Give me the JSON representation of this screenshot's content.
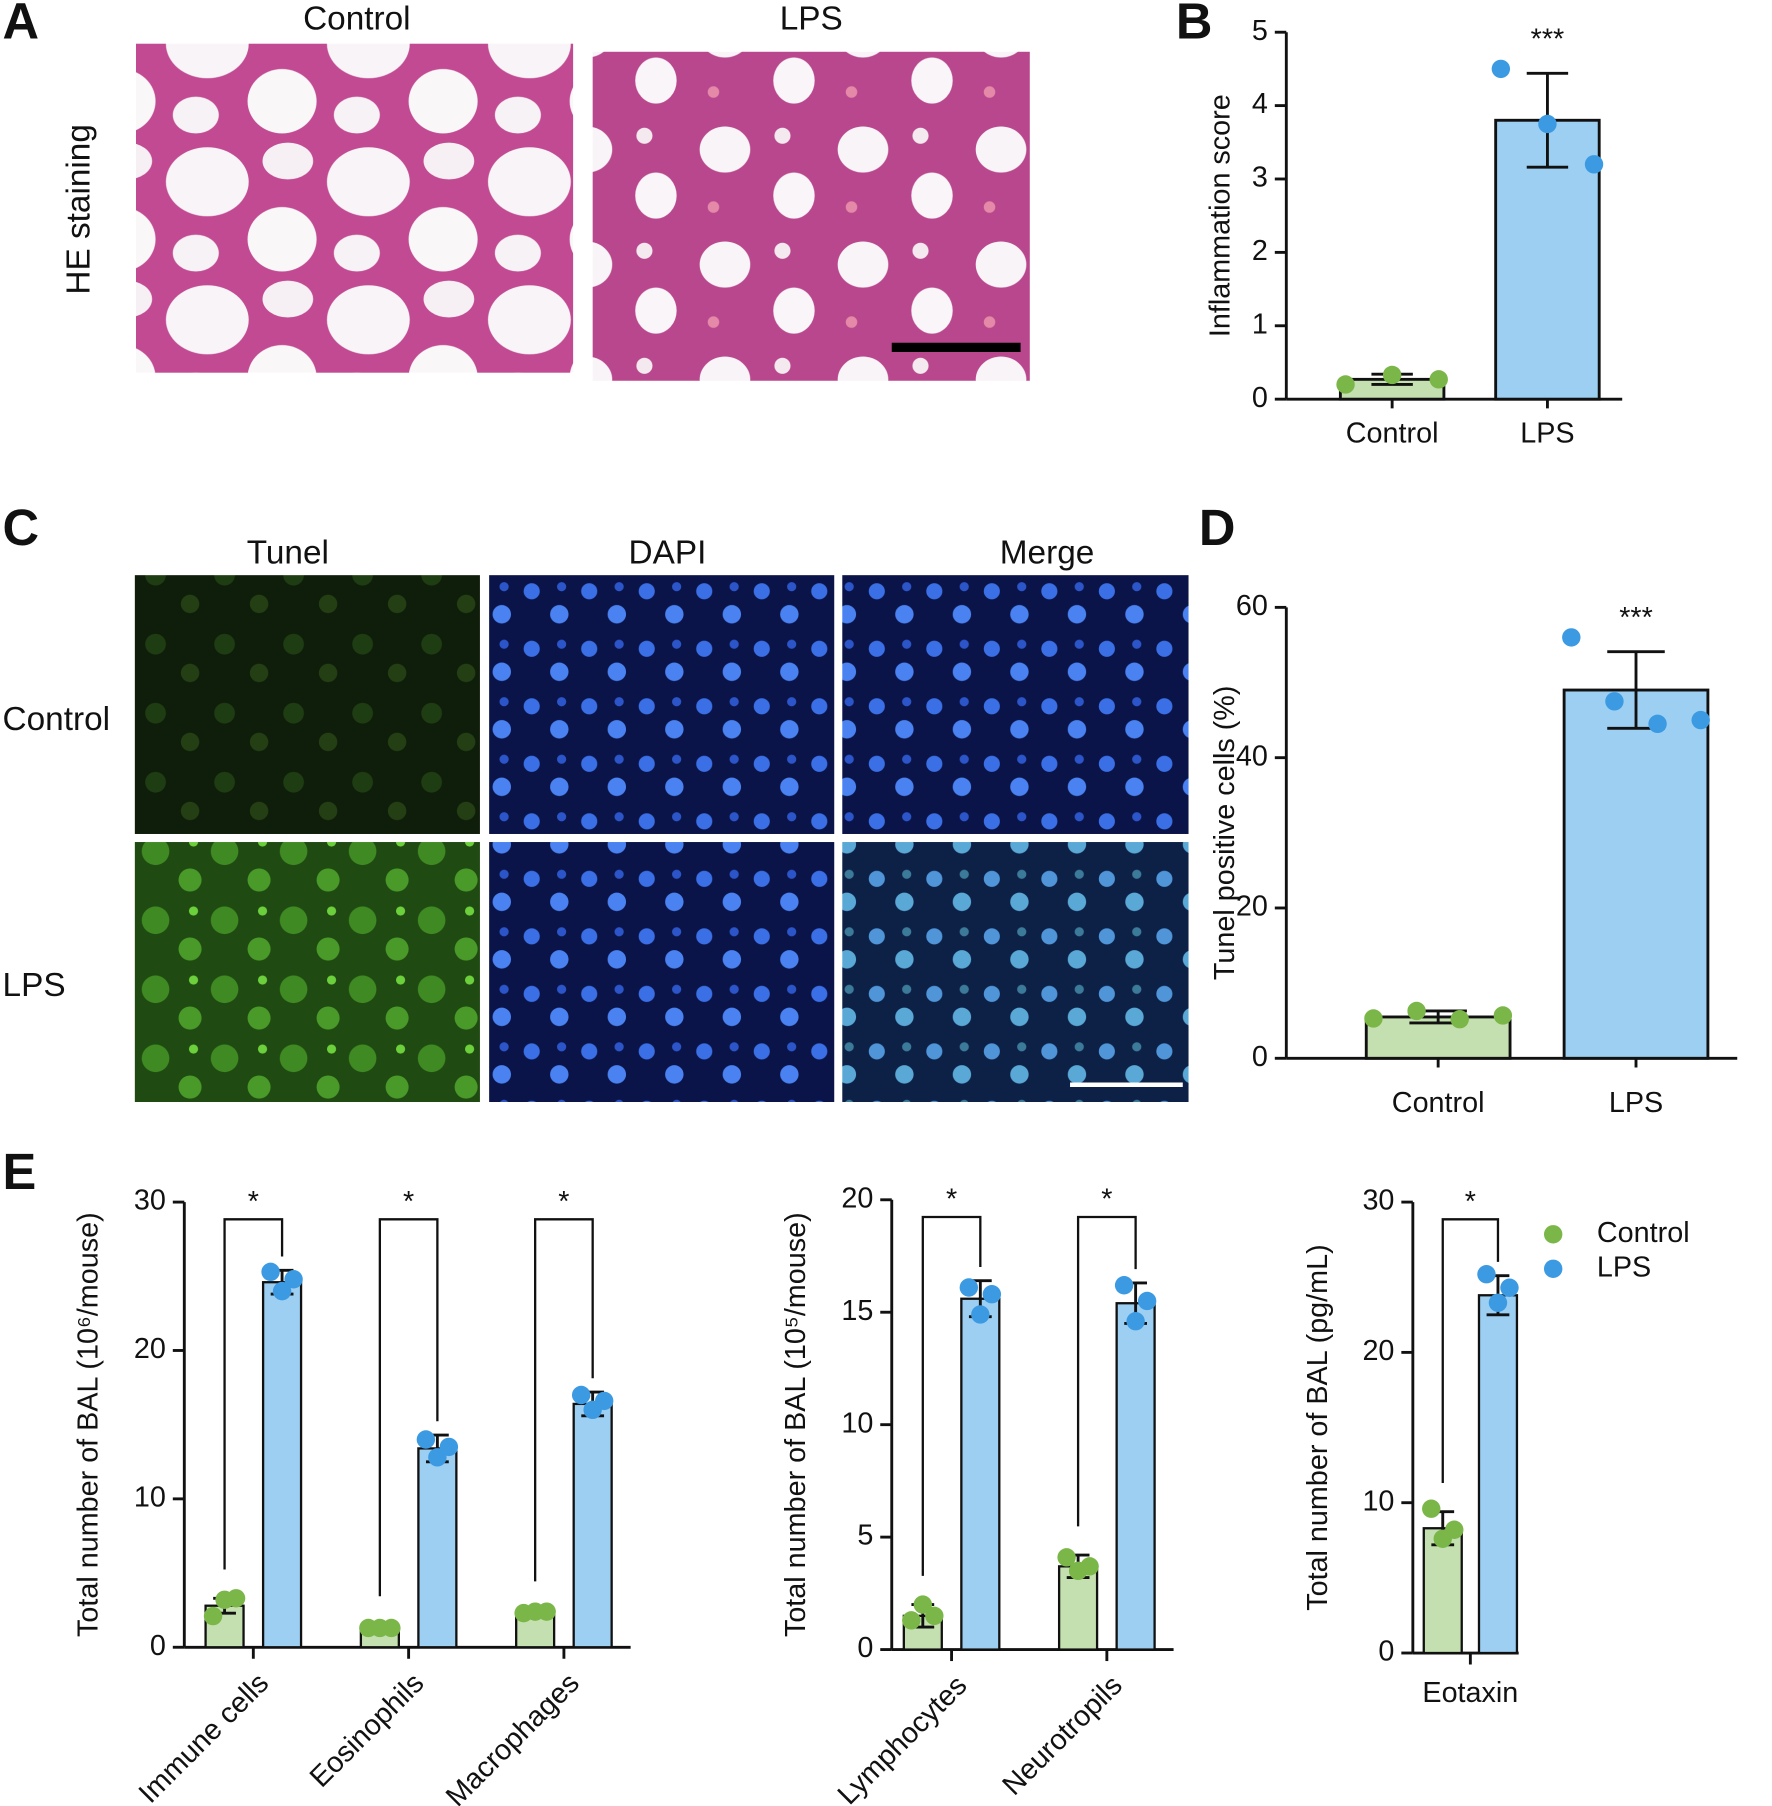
{
  "figure": {
    "panel_labels": [
      "A",
      "B",
      "C",
      "D",
      "E"
    ],
    "he": {
      "row_label": "HE staining",
      "columns": [
        "Control",
        "LPS"
      ]
    },
    "tunel": {
      "columns": [
        "Tunel",
        "DAPI",
        "Merge"
      ],
      "rows": [
        "Control",
        "LPS"
      ]
    }
  },
  "chart_data": [
    {
      "type": "bar",
      "y_label": "Inflammation score",
      "categories": [
        "Control",
        "LPS"
      ],
      "values": [
        0.27,
        3.8
      ],
      "errors": [
        0.07,
        0.64
      ],
      "points": [
        [
          0.2,
          0.33,
          0.27
        ],
        [
          4.5,
          3.75,
          3.2
        ]
      ],
      "colors": [
        "#c5e0b0",
        "#9ccff2"
      ],
      "point_colors": [
        "#7ab648",
        "#3c9ae2"
      ],
      "significance": [
        null,
        "***"
      ],
      "ylim": [
        0,
        5
      ],
      "yticks": [
        0,
        1,
        2,
        3,
        4,
        5
      ]
    },
    {
      "type": "bar",
      "y_label": "Tunel positive cells (%)",
      "categories": [
        "Control",
        "LPS"
      ],
      "values": [
        5.5,
        49
      ],
      "errors": [
        0.8,
        5.1
      ],
      "points": [
        [
          5.3,
          6.3,
          5.2,
          5.7
        ],
        [
          56,
          47.5,
          44.5,
          45
        ]
      ],
      "colors": [
        "#c5e0b0",
        "#9ccff2"
      ],
      "point_colors": [
        "#7ab648",
        "#3c9ae2"
      ],
      "significance": [
        null,
        "***"
      ],
      "ylim": [
        0,
        60
      ],
      "yticks": [
        0,
        20,
        40,
        60
      ]
    },
    {
      "type": "grouped_bar",
      "y_label": "Total number of BAL (10⁶/mouse)",
      "categories": [
        "Immune cells",
        "Eosinophils",
        "Macrophages"
      ],
      "xlabel_rotation": -45,
      "series": [
        {
          "name": "Control",
          "color": "#c5e0b0",
          "point_color": "#7ab648",
          "values": [
            2.8,
            1.3,
            2.3
          ],
          "errors": [
            0.5,
            0.2,
            0.2
          ],
          "points": [
            [
              2.1,
              3.2,
              3.3
            ],
            [
              1.3,
              1.3,
              1.3
            ],
            [
              2.3,
              2.4,
              2.4
            ]
          ]
        },
        {
          "name": "LPS",
          "color": "#9ccff2",
          "point_color": "#3c9ae2",
          "values": [
            24.6,
            13.4,
            16.4
          ],
          "errors": [
            0.8,
            0.9,
            0.8
          ],
          "points": [
            [
              25.3,
              24.0,
              24.8
            ],
            [
              14.0,
              12.8,
              13.5
            ],
            [
              17.0,
              16.0,
              16.6
            ]
          ]
        }
      ],
      "significance": [
        "*",
        "*",
        "*"
      ],
      "ylim": [
        0,
        30
      ],
      "yticks": [
        0,
        10,
        20,
        30
      ],
      "legend": false
    },
    {
      "type": "grouped_bar",
      "y_label": "Total number of BAL (10⁵/mouse)",
      "categories": [
        "Lymphocytes",
        "Neurotropils"
      ],
      "xlabel_rotation": -45,
      "series": [
        {
          "name": "Control",
          "color": "#c5e0b0",
          "point_color": "#7ab648",
          "values": [
            1.5,
            3.7
          ],
          "errors": [
            0.5,
            0.5
          ],
          "points": [
            [
              1.3,
              2.0,
              1.5
            ],
            [
              4.1,
              3.5,
              3.7
            ]
          ]
        },
        {
          "name": "LPS",
          "color": "#9ccff2",
          "point_color": "#3c9ae2",
          "values": [
            15.6,
            15.4
          ],
          "errors": [
            0.8,
            0.9
          ],
          "points": [
            [
              16.1,
              14.9,
              15.8
            ],
            [
              16.2,
              14.6,
              15.5
            ]
          ]
        }
      ],
      "significance": [
        "*",
        "*"
      ],
      "ylim": [
        0,
        20
      ],
      "yticks": [
        0,
        5,
        10,
        15,
        20
      ],
      "legend": false
    },
    {
      "type": "grouped_bar",
      "y_label": "Total number of BAL (pg/mL)",
      "categories": [
        "Eotaxin"
      ],
      "xlabel_rotation": 0,
      "series": [
        {
          "name": "Control",
          "color": "#c5e0b0",
          "point_color": "#7ab648",
          "values": [
            8.3
          ],
          "errors": [
            1.1
          ],
          "points": [
            [
              9.6,
              7.6,
              8.2
            ]
          ]
        },
        {
          "name": "LPS",
          "color": "#9ccff2",
          "point_color": "#3c9ae2",
          "values": [
            23.8
          ],
          "errors": [
            1.3
          ],
          "points": [
            [
              25.2,
              23.3,
              24.3
            ]
          ]
        }
      ],
      "significance": [
        "*"
      ],
      "ylim": [
        0,
        30
      ],
      "yticks": [
        0,
        10,
        20,
        30
      ],
      "legend": true
    }
  ]
}
